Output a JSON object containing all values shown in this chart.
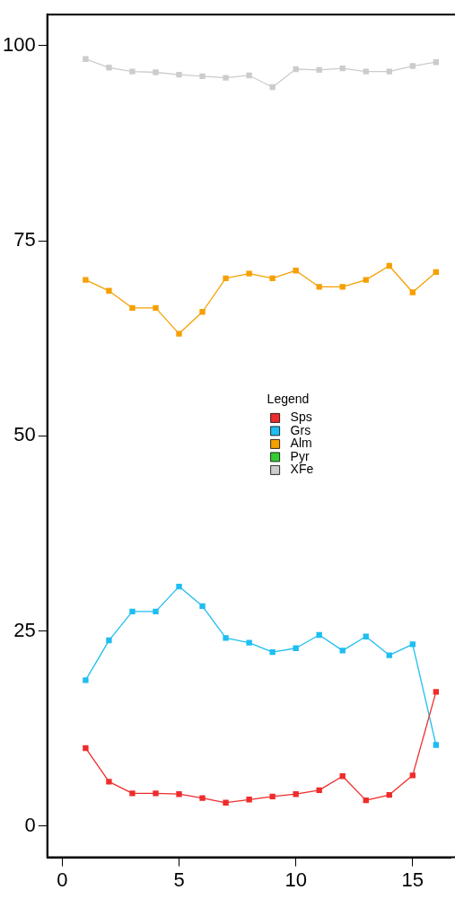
{
  "chart_data": {
    "type": "line",
    "x": [
      1,
      2,
      3,
      4,
      5,
      6,
      7,
      8,
      9,
      10,
      11,
      12,
      13,
      14,
      15,
      16
    ],
    "series": [
      {
        "name": "Sps",
        "color": "#ee2c2c",
        "values": [
          10.0,
          5.7,
          4.2,
          4.2,
          4.1,
          3.6,
          3.0,
          3.4,
          3.8,
          4.1,
          4.6,
          6.4,
          3.3,
          4.0,
          6.5,
          17.2
        ]
      },
      {
        "name": "Grs",
        "color": "#1ebef0",
        "values": [
          18.7,
          23.8,
          27.5,
          27.5,
          30.7,
          28.2,
          24.1,
          23.5,
          22.3,
          22.8,
          24.5,
          22.5,
          24.3,
          21.9,
          23.3,
          10.4
        ]
      },
      {
        "name": "Alm",
        "color": "#f5a000",
        "values": [
          70.0,
          68.6,
          66.4,
          66.4,
          63.1,
          65.9,
          70.2,
          70.8,
          70.2,
          71.2,
          69.1,
          69.1,
          70.0,
          71.8,
          68.4,
          71.0
        ]
      },
      {
        "name": "Pyr",
        "color": "#33cc33",
        "values": [
          null,
          null,
          null,
          null,
          null,
          null,
          null,
          null,
          null,
          null,
          null,
          null,
          null,
          null,
          null,
          null
        ]
      },
      {
        "name": "XFe",
        "color": "#cccccc",
        "values": [
          98.3,
          97.2,
          96.7,
          96.6,
          96.3,
          96.1,
          95.9,
          96.2,
          94.7,
          97.0,
          96.9,
          97.1,
          96.7,
          96.7,
          97.4,
          97.9
        ]
      }
    ],
    "xlim": [
      -0.64,
      16.64
    ],
    "xticks": [
      0,
      5,
      10,
      15
    ],
    "ylim": [
      -4,
      104
    ],
    "yticks": [
      0,
      25,
      50,
      75,
      100
    ],
    "legend": "center",
    "legend_title": "Legend",
    "marker": "square",
    "line_style": "solid",
    "grid": false
  }
}
